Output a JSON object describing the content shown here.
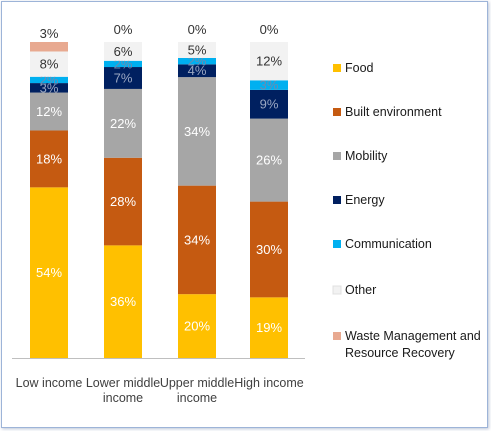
{
  "chart_data": {
    "type": "bar",
    "stacked": true,
    "categories": [
      [
        "Low income"
      ],
      [
        "Lower middle",
        "income"
      ],
      [
        "Upper middle",
        "income"
      ],
      [
        "High income"
      ]
    ],
    "series": [
      {
        "name": "Food",
        "color": "#ffc000",
        "values": [
          54,
          36,
          20,
          19
        ],
        "labels": [
          "54%",
          "36%",
          "20%",
          "19%"
        ]
      },
      {
        "name": "Built environment",
        "color": "#c55a11",
        "values": [
          18,
          28,
          34,
          30
        ],
        "labels": [
          "18%",
          "28%",
          "34%",
          "30%"
        ]
      },
      {
        "name": "Mobility",
        "color": "#a6a6a6",
        "values": [
          12,
          22,
          34,
          26
        ],
        "labels": [
          "12%",
          "22%",
          "34%",
          "26%"
        ]
      },
      {
        "name": "Energy",
        "color": "#002060",
        "values": [
          3,
          7,
          4,
          9
        ],
        "labels": [
          "3%",
          "7%",
          "4%",
          "9%"
        ]
      },
      {
        "name": "Communication",
        "color": "#00b0f0",
        "values": [
          2,
          2,
          2,
          3
        ],
        "labels": [
          "2%",
          "2%",
          "2%",
          "3%"
        ]
      },
      {
        "name": "Other",
        "color": "#f2f2f2",
        "values": [
          8,
          6,
          5,
          12
        ],
        "labels": [
          "8%",
          "6%",
          "5%",
          "12%"
        ]
      },
      {
        "name": [
          "Waste Management and",
          "Resource Recovery"
        ],
        "color": "#e8a990",
        "values": [
          3,
          0,
          0,
          0
        ],
        "labels": [
          "3%",
          "0%",
          "0%",
          "0%"
        ]
      }
    ],
    "legend_position": "right",
    "grid": false,
    "ylim": [
      0,
      100
    ]
  }
}
